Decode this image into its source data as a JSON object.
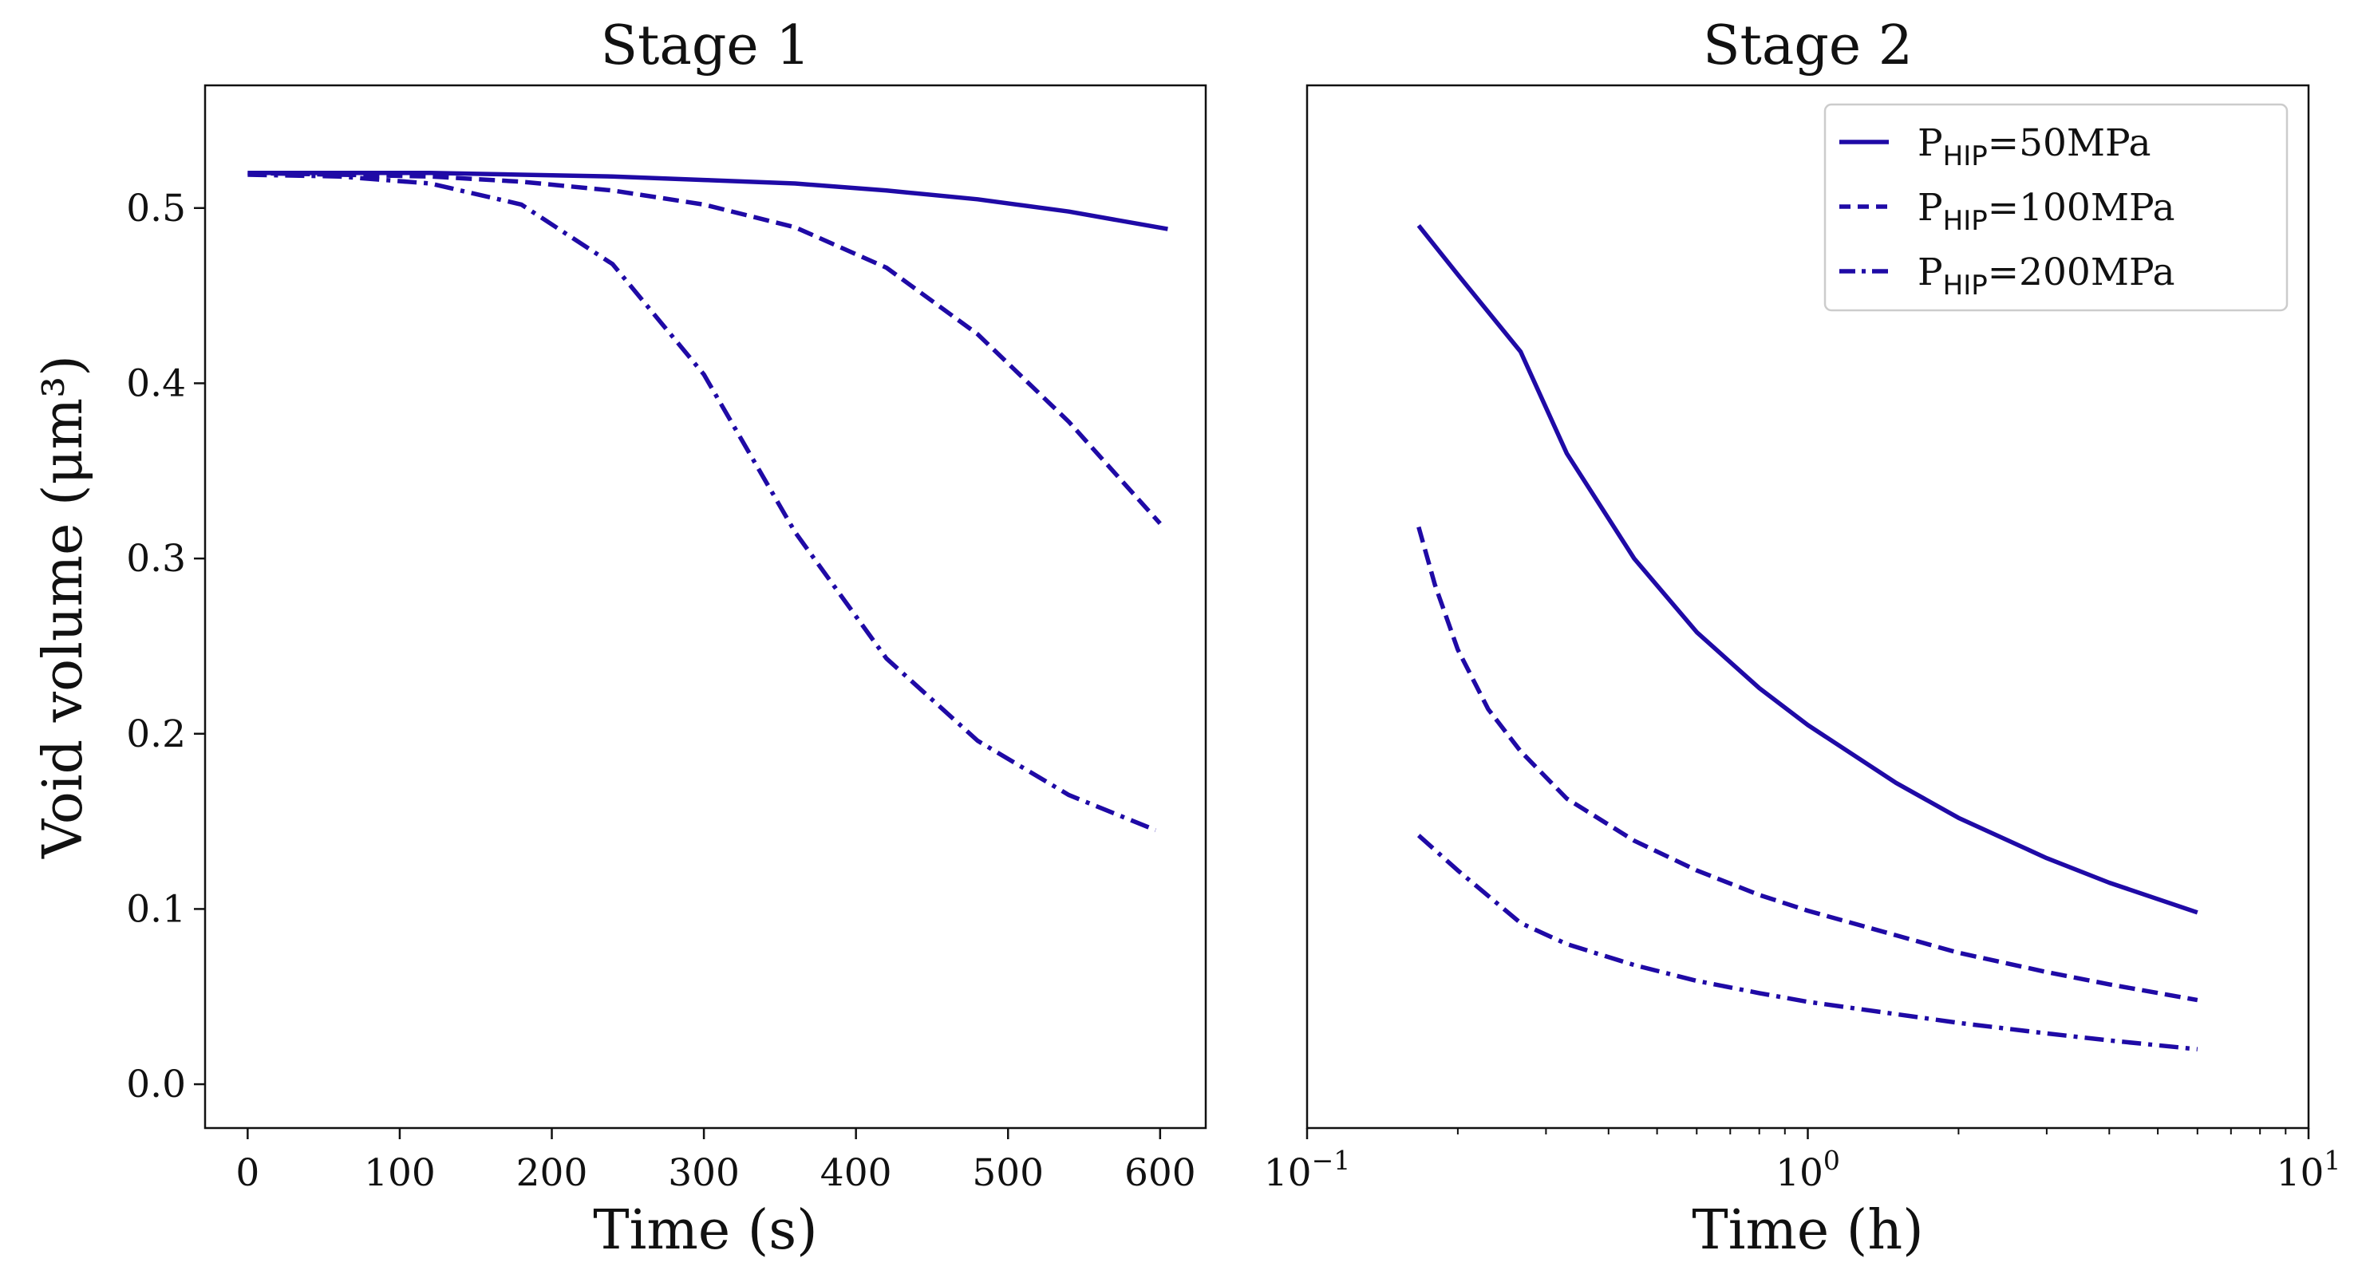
{
  "chart_data": [
    {
      "type": "line",
      "title": "Stage 1",
      "xlabel": "Time (s)",
      "ylabel": "Void volume (μm³)",
      "xscale": "linear",
      "xlim": [
        -28,
        630
      ],
      "ylim": [
        -0.025,
        0.57
      ],
      "xticks": [
        0,
        100,
        200,
        300,
        400,
        500,
        600
      ],
      "xtick_labels": [
        "0",
        "100",
        "200",
        "300",
        "400",
        "500",
        "600"
      ],
      "yticks": [
        0.0,
        0.1,
        0.2,
        0.3,
        0.4,
        0.5
      ],
      "ytick_labels": [
        "0.0",
        "0.1",
        "0.2",
        "0.3",
        "0.4",
        "0.5"
      ],
      "series": [
        {
          "name": "P_HIP=50MPa",
          "style": "solid",
          "x": [
            0,
            60,
            120,
            180,
            240,
            300,
            360,
            420,
            480,
            540,
            605
          ],
          "y": [
            0.52,
            0.52,
            0.52,
            0.519,
            0.518,
            0.516,
            0.514,
            0.51,
            0.505,
            0.498,
            0.488
          ]
        },
        {
          "name": "P_HIP=100MPa",
          "style": "dashed",
          "x": [
            0,
            60,
            120,
            180,
            240,
            300,
            360,
            420,
            480,
            540,
            600
          ],
          "y": [
            0.52,
            0.519,
            0.518,
            0.515,
            0.51,
            0.502,
            0.489,
            0.466,
            0.428,
            0.378,
            0.32
          ]
        },
        {
          "name": "P_HIP=200MPa",
          "style": "dashdot",
          "x": [
            0,
            60,
            120,
            180,
            240,
            300,
            360,
            420,
            480,
            540,
            597
          ],
          "y": [
            0.519,
            0.518,
            0.514,
            0.502,
            0.468,
            0.405,
            0.315,
            0.243,
            0.196,
            0.165,
            0.145
          ]
        }
      ]
    },
    {
      "type": "line",
      "title": "Stage 2",
      "xlabel": "Time (h)",
      "ylabel": "",
      "xscale": "log",
      "xlim": [
        0.1,
        10
      ],
      "ylim": [
        -0.025,
        0.57
      ],
      "xticks": [
        0.1,
        1,
        10
      ],
      "xtick_labels": [
        {
          "base": "10",
          "exp": "−1"
        },
        {
          "base": "10",
          "exp": "0"
        },
        {
          "base": "10",
          "exp": "1"
        }
      ],
      "series": [
        {
          "name": "P_HIP=50MPa",
          "style": "solid",
          "x": [
            0.167,
            0.2,
            0.267,
            0.33,
            0.45,
            0.6,
            0.8,
            1.0,
            1.5,
            2.0,
            3.0,
            4.0,
            6.0
          ],
          "y": [
            0.49,
            0.462,
            0.418,
            0.36,
            0.3,
            0.258,
            0.226,
            0.205,
            0.172,
            0.152,
            0.129,
            0.115,
            0.098
          ]
        },
        {
          "name": "P_HIP=100MPa",
          "style": "dashed",
          "x": [
            0.167,
            0.18,
            0.2,
            0.23,
            0.267,
            0.33,
            0.45,
            0.6,
            0.8,
            1.0,
            1.5,
            2.0,
            3.0,
            4.0,
            6.0
          ],
          "y": [
            0.318,
            0.285,
            0.248,
            0.214,
            0.19,
            0.163,
            0.139,
            0.122,
            0.108,
            0.099,
            0.085,
            0.075,
            0.064,
            0.057,
            0.048
          ]
        },
        {
          "name": "P_HIP=200MPa",
          "style": "dashdot",
          "x": [
            0.167,
            0.2,
            0.267,
            0.33,
            0.45,
            0.6,
            0.8,
            1.0,
            1.5,
            2.0,
            3.0,
            4.0,
            6.0
          ],
          "y": [
            0.142,
            0.122,
            0.092,
            0.08,
            0.068,
            0.059,
            0.052,
            0.047,
            0.04,
            0.035,
            0.029,
            0.025,
            0.02
          ]
        }
      ]
    }
  ],
  "legend": {
    "placement": "top-right of Stage 2",
    "entries": [
      {
        "style": "solid",
        "prefix": "P",
        "subscript": "HIP",
        "suffix": "=50MPa"
      },
      {
        "style": "dashed",
        "prefix": "P",
        "subscript": "HIP",
        "suffix": "=100MPa"
      },
      {
        "style": "dashdot",
        "prefix": "P",
        "subscript": "HIP",
        "suffix": "=200MPa"
      }
    ]
  },
  "colors": {
    "line": "#1f0aa6",
    "axes": "#111111",
    "legend_border": "#cccccc"
  }
}
